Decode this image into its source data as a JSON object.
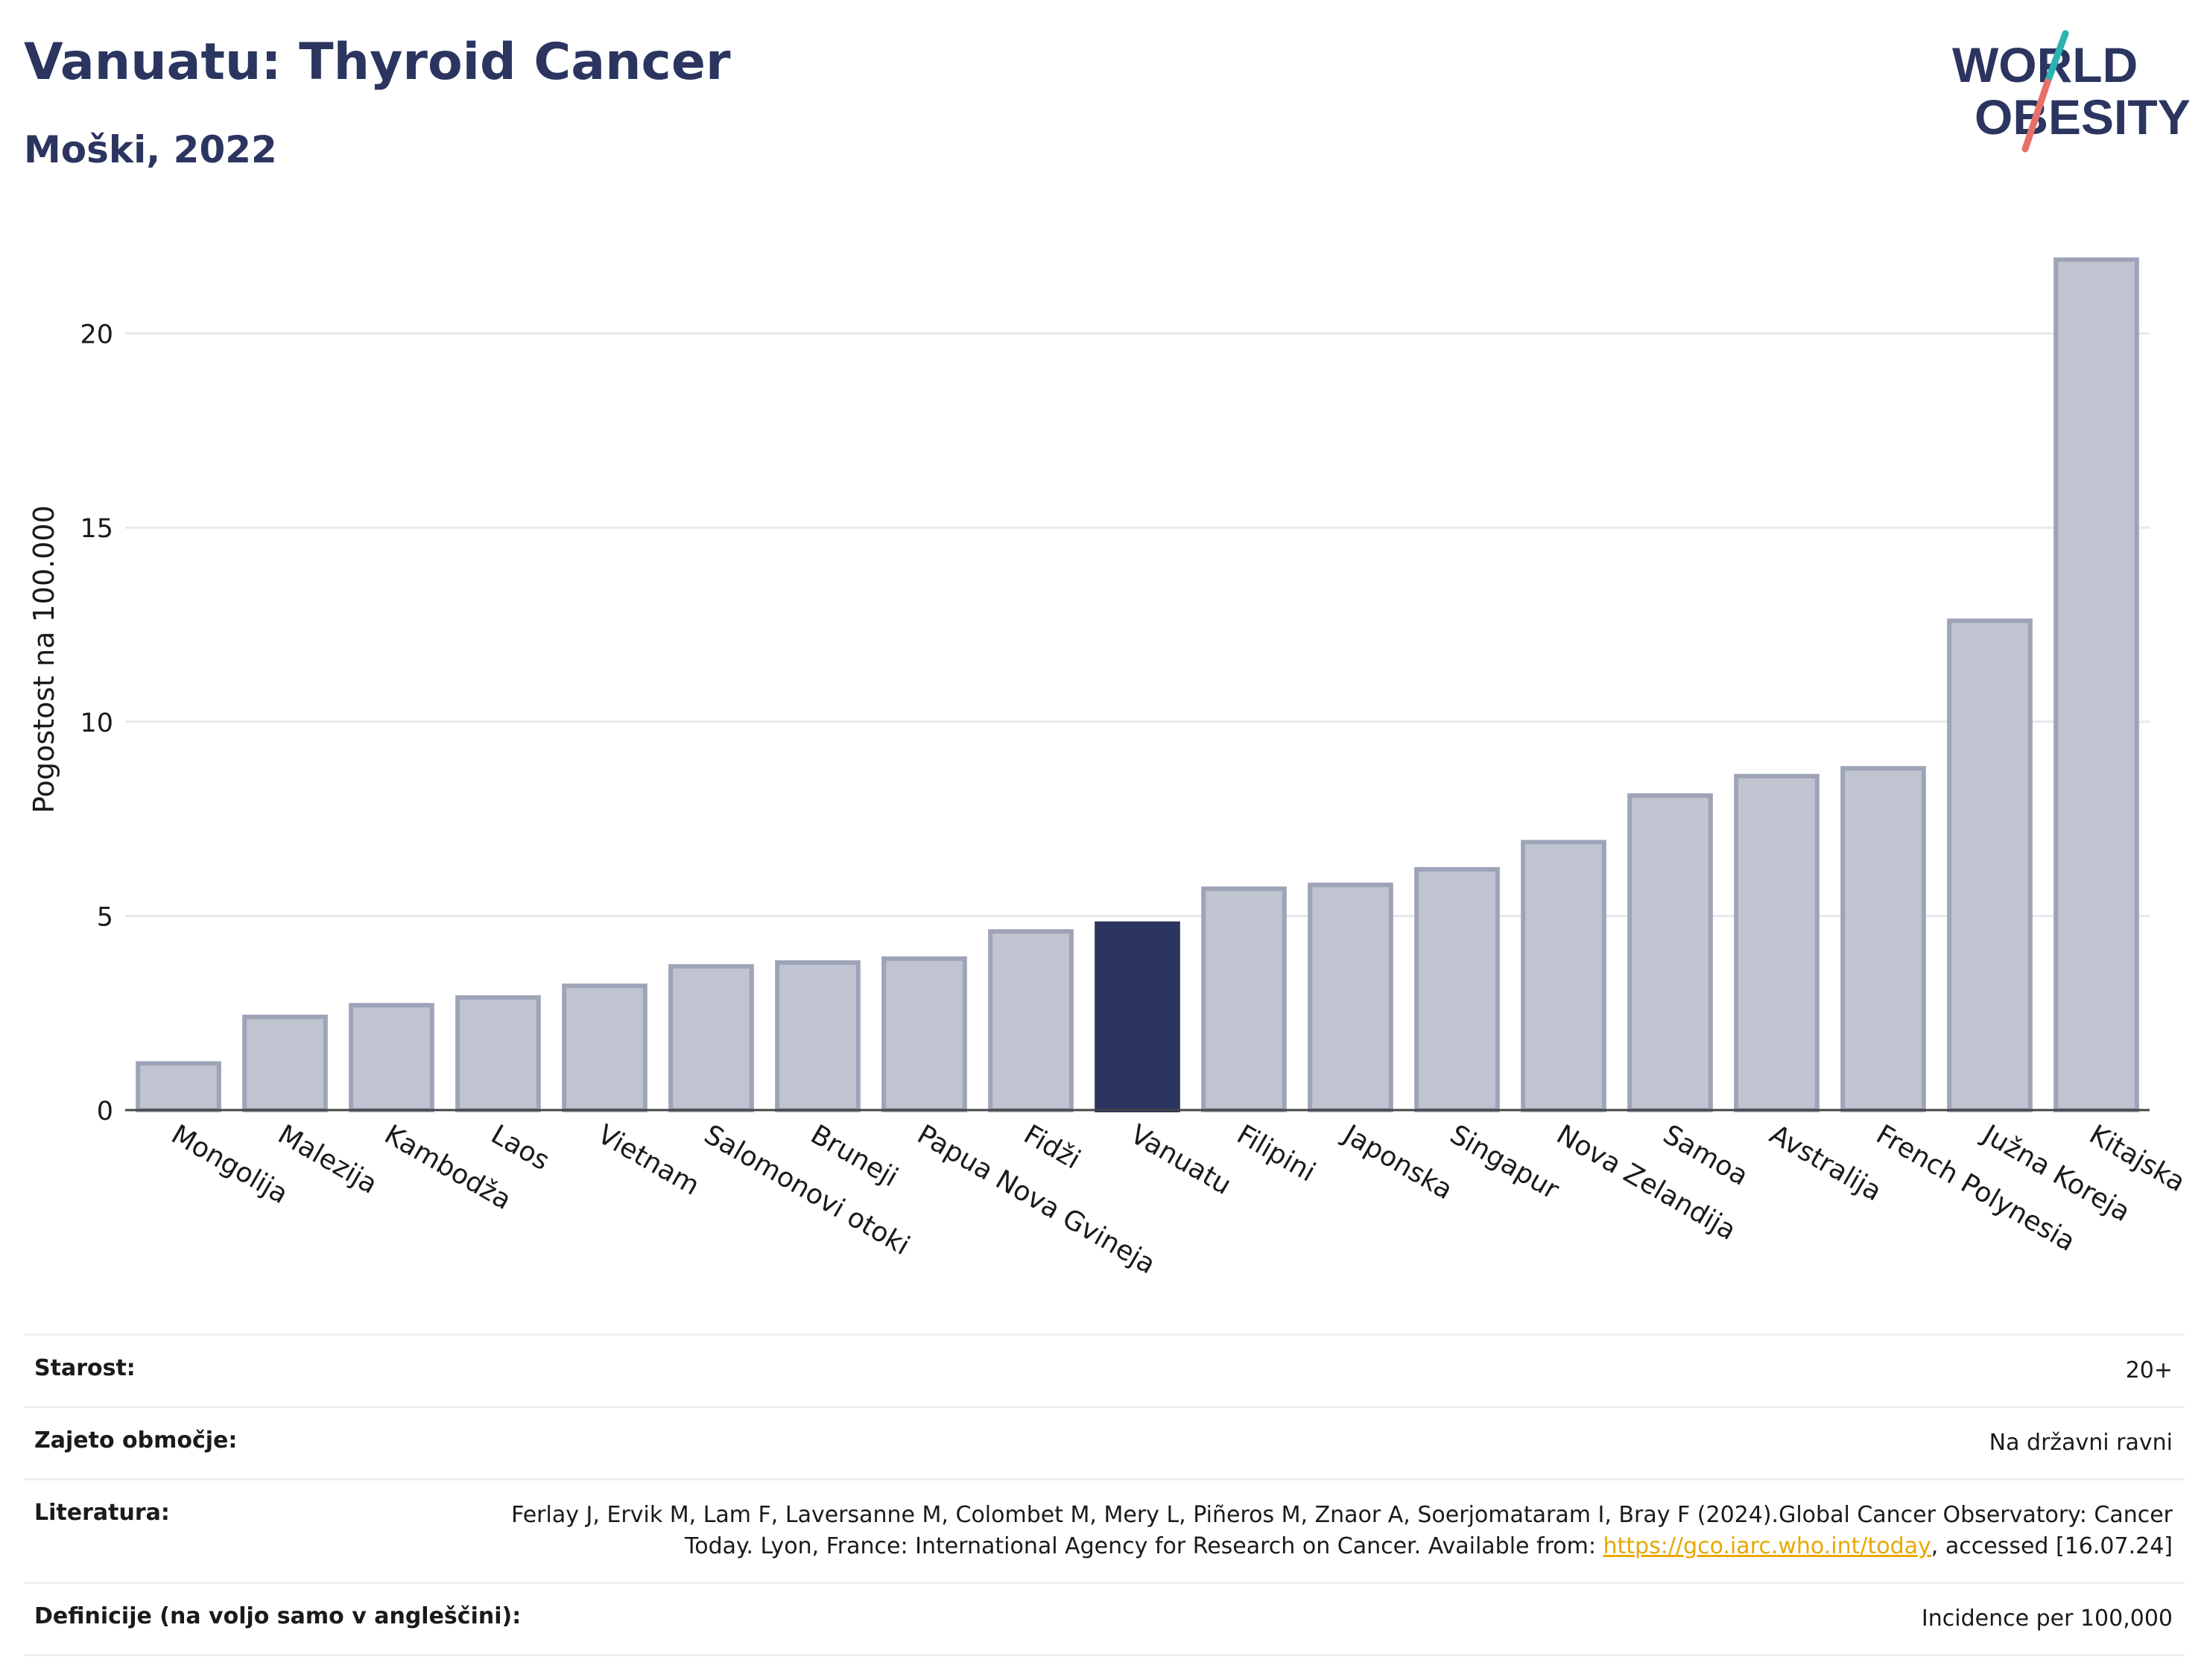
{
  "header": {
    "title": "Vanuatu: Thyroid Cancer",
    "subtitle": "Moški, 2022",
    "logo_line1": "WORLD",
    "logo_line2": "OBESITY"
  },
  "colors": {
    "highlight_bar": "#2b3560",
    "other_bars": "#c0c4d1",
    "bar_border": "#9ea4b8",
    "title": "#2b3560",
    "link": "#e8a800"
  },
  "chart_data": {
    "type": "bar",
    "ylabel": "Pogostost na 100.000",
    "xlabel": "",
    "ylim": [
      0,
      22.6
    ],
    "yticks": [
      0,
      5,
      10,
      15,
      20
    ],
    "grid": true,
    "highlight": "Vanuatu",
    "categories": [
      "Mongolija",
      "Malezija",
      "Kambodža",
      "Laos",
      "Vietnam",
      "Salomonovi otoki",
      "Bruneji",
      "Papua Nova Gvineja",
      "Fidži",
      "Vanuatu",
      "Filipini",
      "Japonska",
      "Singapur",
      "Nova Zelandija",
      "Samoa",
      "Avstralija",
      "French Polynesia",
      "Južna Koreja",
      "Kitajska"
    ],
    "values": [
      1.2,
      2.4,
      2.7,
      2.9,
      3.2,
      3.7,
      3.8,
      3.9,
      4.6,
      4.8,
      5.7,
      5.8,
      6.2,
      6.9,
      8.1,
      8.6,
      8.8,
      12.6,
      21.9
    ]
  },
  "meta": {
    "age_label": "Starost:",
    "age_value": "20+",
    "coverage_label": "Zajeto območje:",
    "coverage_value": "Na državni ravni",
    "ref_label": "Literatura:",
    "ref_text_1": "Ferlay J, Ervik M, Lam F, Laversanne M, Colombet M, Mery L, Piñeros M, Znaor A, Soerjomataram I, Bray F (2024).Global Cancer Observatory: Cancer Today. Lyon, France: International Agency for Research on Cancer. Available from: ",
    "ref_link": "https://gco.iarc.who.int/today",
    "ref_text_2": ", accessed [16.07.24]",
    "def_label": "Definicije (na voljo samo v angleščini):",
    "def_value": "Incidence per 100,000"
  }
}
